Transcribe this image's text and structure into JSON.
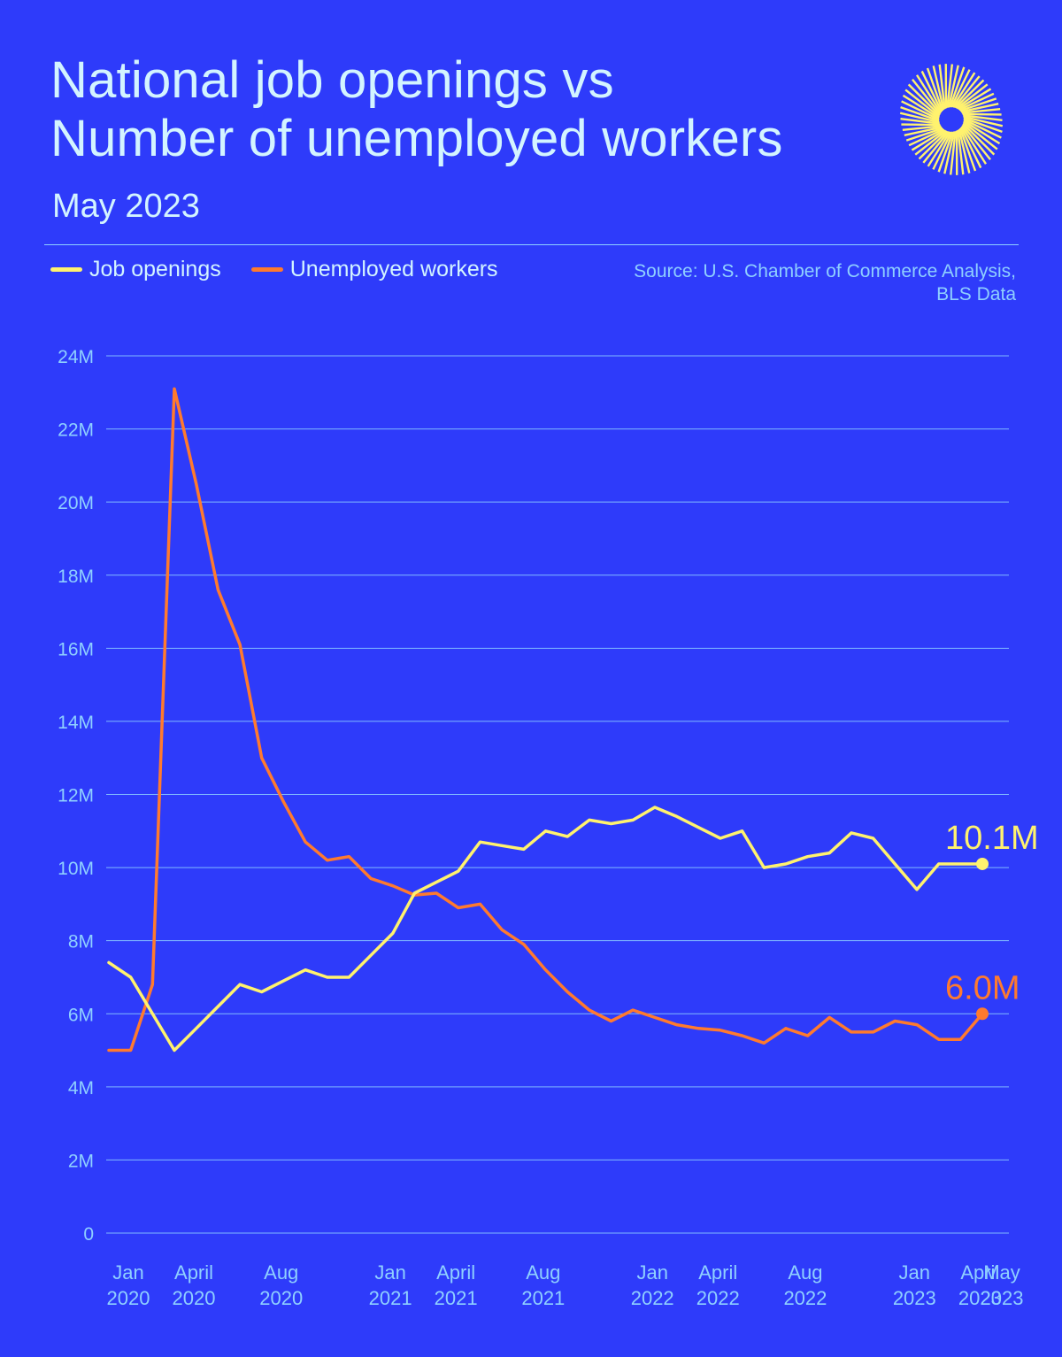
{
  "header": {
    "title_line1": "National job openings vs",
    "title_line2": "Number of unemployed workers",
    "subtitle": "May 2023",
    "source_line1": "Source: U.S. Chamber of Commerce Analysis,",
    "source_line2": "BLS Data"
  },
  "legend": [
    {
      "label": "Job openings",
      "color": "#fff26e"
    },
    {
      "label": "Unemployed workers",
      "color": "#ff7a2e"
    }
  ],
  "colors": {
    "background": "#2e3bfa",
    "text": "#d3f4ff",
    "axis_text": "#8fd0ff",
    "grid": "#8fd0ff",
    "job_openings": "#fff26e",
    "unemployed": "#ff7a2e",
    "logo": "#fff26e"
  },
  "chart_data": {
    "type": "line",
    "title": "National job openings vs Number of unemployed workers",
    "subtitle": "May 2023",
    "xlabel": "",
    "ylabel": "",
    "ylim": [
      0,
      24
    ],
    "yticks": [
      0,
      2,
      4,
      6,
      8,
      10,
      12,
      14,
      16,
      18,
      20,
      22,
      24
    ],
    "ytick_labels": [
      "0",
      "2M",
      "4M",
      "6M",
      "8M",
      "10M",
      "12M",
      "14M",
      "16M",
      "18M",
      "20M",
      "22M",
      "24M"
    ],
    "x_start": "2020-01",
    "x_end": "2023-05",
    "xticks": [
      {
        "month": "2020-01",
        "line1": "Jan",
        "line2": "2020"
      },
      {
        "month": "2020-04",
        "line1": "April",
        "line2": "2020"
      },
      {
        "month": "2020-08",
        "line1": "Aug",
        "line2": "2020"
      },
      {
        "month": "2021-01",
        "line1": "Jan",
        "line2": "2021"
      },
      {
        "month": "2021-04",
        "line1": "April",
        "line2": "2021"
      },
      {
        "month": "2021-08",
        "line1": "Aug",
        "line2": "2021"
      },
      {
        "month": "2022-01",
        "line1": "Jan",
        "line2": "2022"
      },
      {
        "month": "2022-04",
        "line1": "April",
        "line2": "2022"
      },
      {
        "month": "2022-08",
        "line1": "Aug",
        "line2": "2022"
      },
      {
        "month": "2023-01",
        "line1": "Jan",
        "line2": "2023"
      },
      {
        "month": "2023-04",
        "line1": "April",
        "line2": "2023"
      },
      {
        "month": "2023-05",
        "line1": "May",
        "line2": "2023"
      }
    ],
    "grid": true,
    "legend_position": "top-left",
    "series": [
      {
        "name": "Job openings",
        "color": "#fff26e",
        "x": [
          "2020-01",
          "2020-02",
          "2020-04",
          "2020-05",
          "2020-06",
          "2020-07",
          "2020-08",
          "2020-09",
          "2020-10",
          "2020-11",
          "2020-12",
          "2021-01",
          "2021-02",
          "2021-03",
          "2021-04",
          "2021-05",
          "2021-06",
          "2021-07",
          "2021-08",
          "2021-09",
          "2021-10",
          "2021-11",
          "2021-12",
          "2022-01",
          "2022-02",
          "2022-03",
          "2022-04",
          "2022-05",
          "2022-06",
          "2022-07",
          "2022-08",
          "2022-09",
          "2022-10",
          "2022-11",
          "2022-12",
          "2023-01",
          "2023-02",
          "2023-03",
          "2023-04",
          "2023-05"
        ],
        "y": [
          7.4,
          7.0,
          5.0,
          5.6,
          6.2,
          6.8,
          6.6,
          6.9,
          7.2,
          7.0,
          7.0,
          7.6,
          8.2,
          9.3,
          9.6,
          9.9,
          10.7,
          10.6,
          10.5,
          11.0,
          10.85,
          11.3,
          11.2,
          11.3,
          11.65,
          11.4,
          11.1,
          10.8,
          11.0,
          10.0,
          10.1,
          10.3,
          10.4,
          10.95,
          10.8,
          10.1,
          9.4,
          10.1,
          10.1,
          10.1
        ],
        "end_label": "10.1M"
      },
      {
        "name": "Unemployed workers",
        "color": "#ff7a2e",
        "x": [
          "2020-01",
          "2020-02",
          "2020-03",
          "2020-04",
          "2020-05",
          "2020-06",
          "2020-07",
          "2020-08",
          "2020-09",
          "2020-10",
          "2020-11",
          "2020-12",
          "2021-01",
          "2021-02",
          "2021-03",
          "2021-04",
          "2021-05",
          "2021-06",
          "2021-07",
          "2021-08",
          "2021-09",
          "2021-10",
          "2021-11",
          "2021-12",
          "2022-01",
          "2022-02",
          "2022-03",
          "2022-04",
          "2022-05",
          "2022-06",
          "2022-07",
          "2022-08",
          "2022-09",
          "2022-10",
          "2022-11",
          "2022-12",
          "2023-01",
          "2023-02",
          "2023-03",
          "2023-04",
          "2023-05"
        ],
        "y": [
          5.0,
          5.0,
          6.8,
          23.1,
          20.5,
          17.6,
          16.1,
          13.0,
          11.8,
          10.7,
          10.2,
          10.3,
          9.7,
          9.5,
          9.25,
          9.3,
          8.9,
          9.0,
          8.3,
          7.9,
          7.2,
          6.6,
          6.1,
          5.8,
          6.1,
          5.9,
          5.7,
          5.6,
          5.55,
          5.4,
          5.2,
          5.6,
          5.4,
          5.9,
          5.5,
          5.5,
          5.8,
          5.7,
          5.3,
          5.3,
          6.0
        ],
        "end_label": "6.0M"
      }
    ]
  }
}
